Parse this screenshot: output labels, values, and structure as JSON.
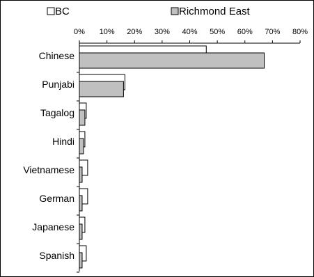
{
  "chart_data": {
    "type": "bar",
    "orientation": "horizontal",
    "categories": [
      "Chinese",
      "Punjabi",
      "Tagalog",
      "Hindi",
      "Vietnamese",
      "German",
      "Japanese",
      "Spanish"
    ],
    "series": [
      {
        "name": "BC",
        "values": [
          46,
          16.5,
          2.5,
          2,
          3,
          3,
          2,
          2.5
        ],
        "color": "#ffffff"
      },
      {
        "name": "Richmond East",
        "values": [
          67,
          16,
          2,
          1.5,
          1,
          1,
          1,
          1
        ],
        "color": "#c0c0c0"
      }
    ],
    "xlim": [
      0,
      80
    ],
    "x_ticks": [
      "0%",
      "10%",
      "20%",
      "30%",
      "40%",
      "50%",
      "60%",
      "70%",
      "80%"
    ],
    "axis_position": "top",
    "legend_position": "top",
    "grid": false
  }
}
